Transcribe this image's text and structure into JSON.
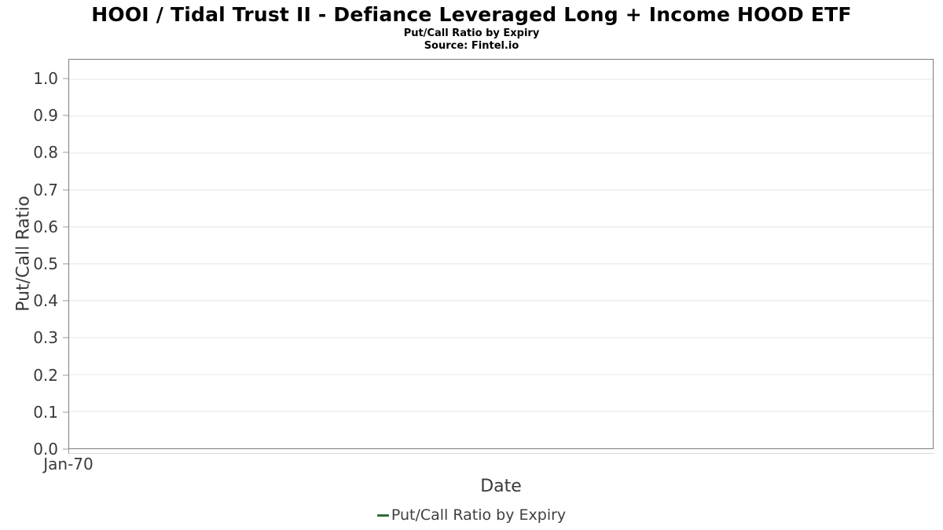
{
  "header": {
    "title": "HOOI / Tidal Trust II - Defiance Leveraged Long + Income HOOD ETF",
    "subtitle": "Put/Call Ratio by Expiry",
    "source": "Source: Fintel.io"
  },
  "chart_data": {
    "type": "line",
    "title": "Put/Call Ratio by Expiry",
    "xlabel": "Date",
    "ylabel": "Put/Call Ratio",
    "x_ticks": [
      "Jan-70"
    ],
    "y_ticks": [
      {
        "label": "0.0",
        "value": 0.0
      },
      {
        "label": "0.1",
        "value": 0.1
      },
      {
        "label": "0.2",
        "value": 0.2
      },
      {
        "label": "0.3",
        "value": 0.3
      },
      {
        "label": "0.4",
        "value": 0.4
      },
      {
        "label": "0.5",
        "value": 0.5
      },
      {
        "label": "0.6",
        "value": 0.6
      },
      {
        "label": "0.7",
        "value": 0.7
      },
      {
        "label": "0.8",
        "value": 0.8
      },
      {
        "label": "0.9",
        "value": 0.9
      },
      {
        "label": "1.0",
        "value": 1.0
      }
    ],
    "ylim": [
      0,
      1.053
    ],
    "grid": "horizontal",
    "legend_position": "bottom-center",
    "series": [
      {
        "name": "Put/Call Ratio by Expiry",
        "color": "#2e6b37",
        "x": [],
        "values": []
      }
    ]
  },
  "legend": {
    "items": [
      {
        "label": "Put/Call Ratio by Expiry",
        "marker": "line",
        "color": "#2e6b37"
      }
    ]
  },
  "colors": {
    "axis_border": "#7d7d7d",
    "gridline": "#e6e6e6",
    "tick_mark": "#999999",
    "tick_text": "#3a3a3a",
    "title_text": "#000000",
    "legend_text": "#3f3f3f",
    "series_green": "#2e6b37"
  }
}
